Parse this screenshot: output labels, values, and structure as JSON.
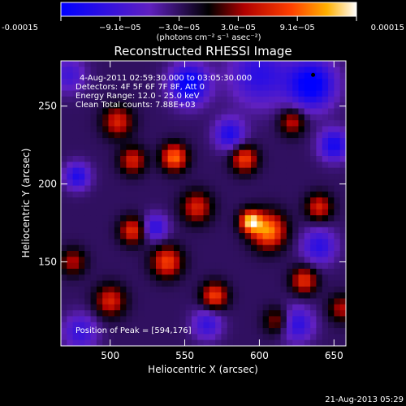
{
  "chart_data": {
    "type": "heatmap",
    "title": "Reconstructed RHESSI Image",
    "xlabel": "Heliocentric X (arcsec)",
    "ylabel": "Heliocentric Y (arcsec)",
    "xlim": [
      467,
      658
    ],
    "ylim": [
      96,
      279
    ],
    "x_ticks": [
      500,
      550,
      600,
      650
    ],
    "y_ticks": [
      150,
      200,
      250
    ],
    "colorbar": {
      "min": -0.00015,
      "max": 0.00015,
      "tick_labels": [
        "-0.00015",
        "−9.1e−05",
        "−3.0e−05",
        "3.0e−05",
        "9.1e−05",
        "0.00015"
      ],
      "unit_label": "(photons cm⁻² s⁻¹ asec⁻²)"
    },
    "annotations": [
      "4-Aug-2011 02:59:30.000 to 03:05:30.000",
      "Detectors: 4F 5F 6F 7F 8F, Att 0",
      "Energy Range: 12.0 - 25.0 keV",
      "Clean    Total counts: 7.88E+03"
    ],
    "peak_text": "Position of Peak = [594,176]",
    "peak": [
      594,
      176
    ],
    "marker": [
      636,
      270
    ],
    "blobs": [
      {
        "x": 553,
        "y": 264,
        "v": -0.000125,
        "r": 9
      },
      {
        "x": 635,
        "y": 264,
        "v": -0.00013,
        "r": 11
      },
      {
        "x": 600,
        "y": 270,
        "v": -8e-05,
        "r": 14
      },
      {
        "x": 650,
        "y": 225,
        "v": -0.0001,
        "r": 7
      },
      {
        "x": 472,
        "y": 270,
        "v": -6e-05,
        "r": 8
      },
      {
        "x": 478,
        "y": 205,
        "v": -9e-05,
        "r": 6
      },
      {
        "x": 580,
        "y": 232,
        "v": -9e-05,
        "r": 7
      },
      {
        "x": 530,
        "y": 172,
        "v": -8e-05,
        "r": 6
      },
      {
        "x": 640,
        "y": 160,
        "v": -8e-05,
        "r": 8
      },
      {
        "x": 565,
        "y": 110,
        "v": -7e-05,
        "r": 7
      },
      {
        "x": 625,
        "y": 110,
        "v": -8e-05,
        "r": 8
      },
      {
        "x": 480,
        "y": 105,
        "v": -7e-05,
        "r": 8
      },
      {
        "x": 505,
        "y": 240,
        "v": 9e-05,
        "r": 7
      },
      {
        "x": 543,
        "y": 217,
        "v": 0.00013,
        "r": 6
      },
      {
        "x": 515,
        "y": 215,
        "v": 9e-05,
        "r": 6
      },
      {
        "x": 590,
        "y": 216,
        "v": 0.00011,
        "r": 6
      },
      {
        "x": 558,
        "y": 185,
        "v": 9e-05,
        "r": 7
      },
      {
        "x": 606,
        "y": 170,
        "v": 0.00014,
        "r": 8
      },
      {
        "x": 594,
        "y": 176,
        "v": 0.00015,
        "r": 5
      },
      {
        "x": 515,
        "y": 170,
        "v": 0.0001,
        "r": 6
      },
      {
        "x": 500,
        "y": 125,
        "v": 9e-05,
        "r": 7
      },
      {
        "x": 538,
        "y": 150,
        "v": 0.00011,
        "r": 7
      },
      {
        "x": 570,
        "y": 128,
        "v": 0.00011,
        "r": 6
      },
      {
        "x": 640,
        "y": 185,
        "v": 9e-05,
        "r": 6
      },
      {
        "x": 630,
        "y": 138,
        "v": 0.0001,
        "r": 6
      },
      {
        "x": 622,
        "y": 240,
        "v": 8e-05,
        "r": 6
      },
      {
        "x": 475,
        "y": 150,
        "v": 7e-05,
        "r": 6
      },
      {
        "x": 612,
        "y": 112,
        "v": 7e-05,
        "r": 6
      },
      {
        "x": 655,
        "y": 120,
        "v": 7e-05,
        "r": 6
      }
    ]
  },
  "footer": {
    "timestamp": "21-Aug-2013 05:29"
  }
}
